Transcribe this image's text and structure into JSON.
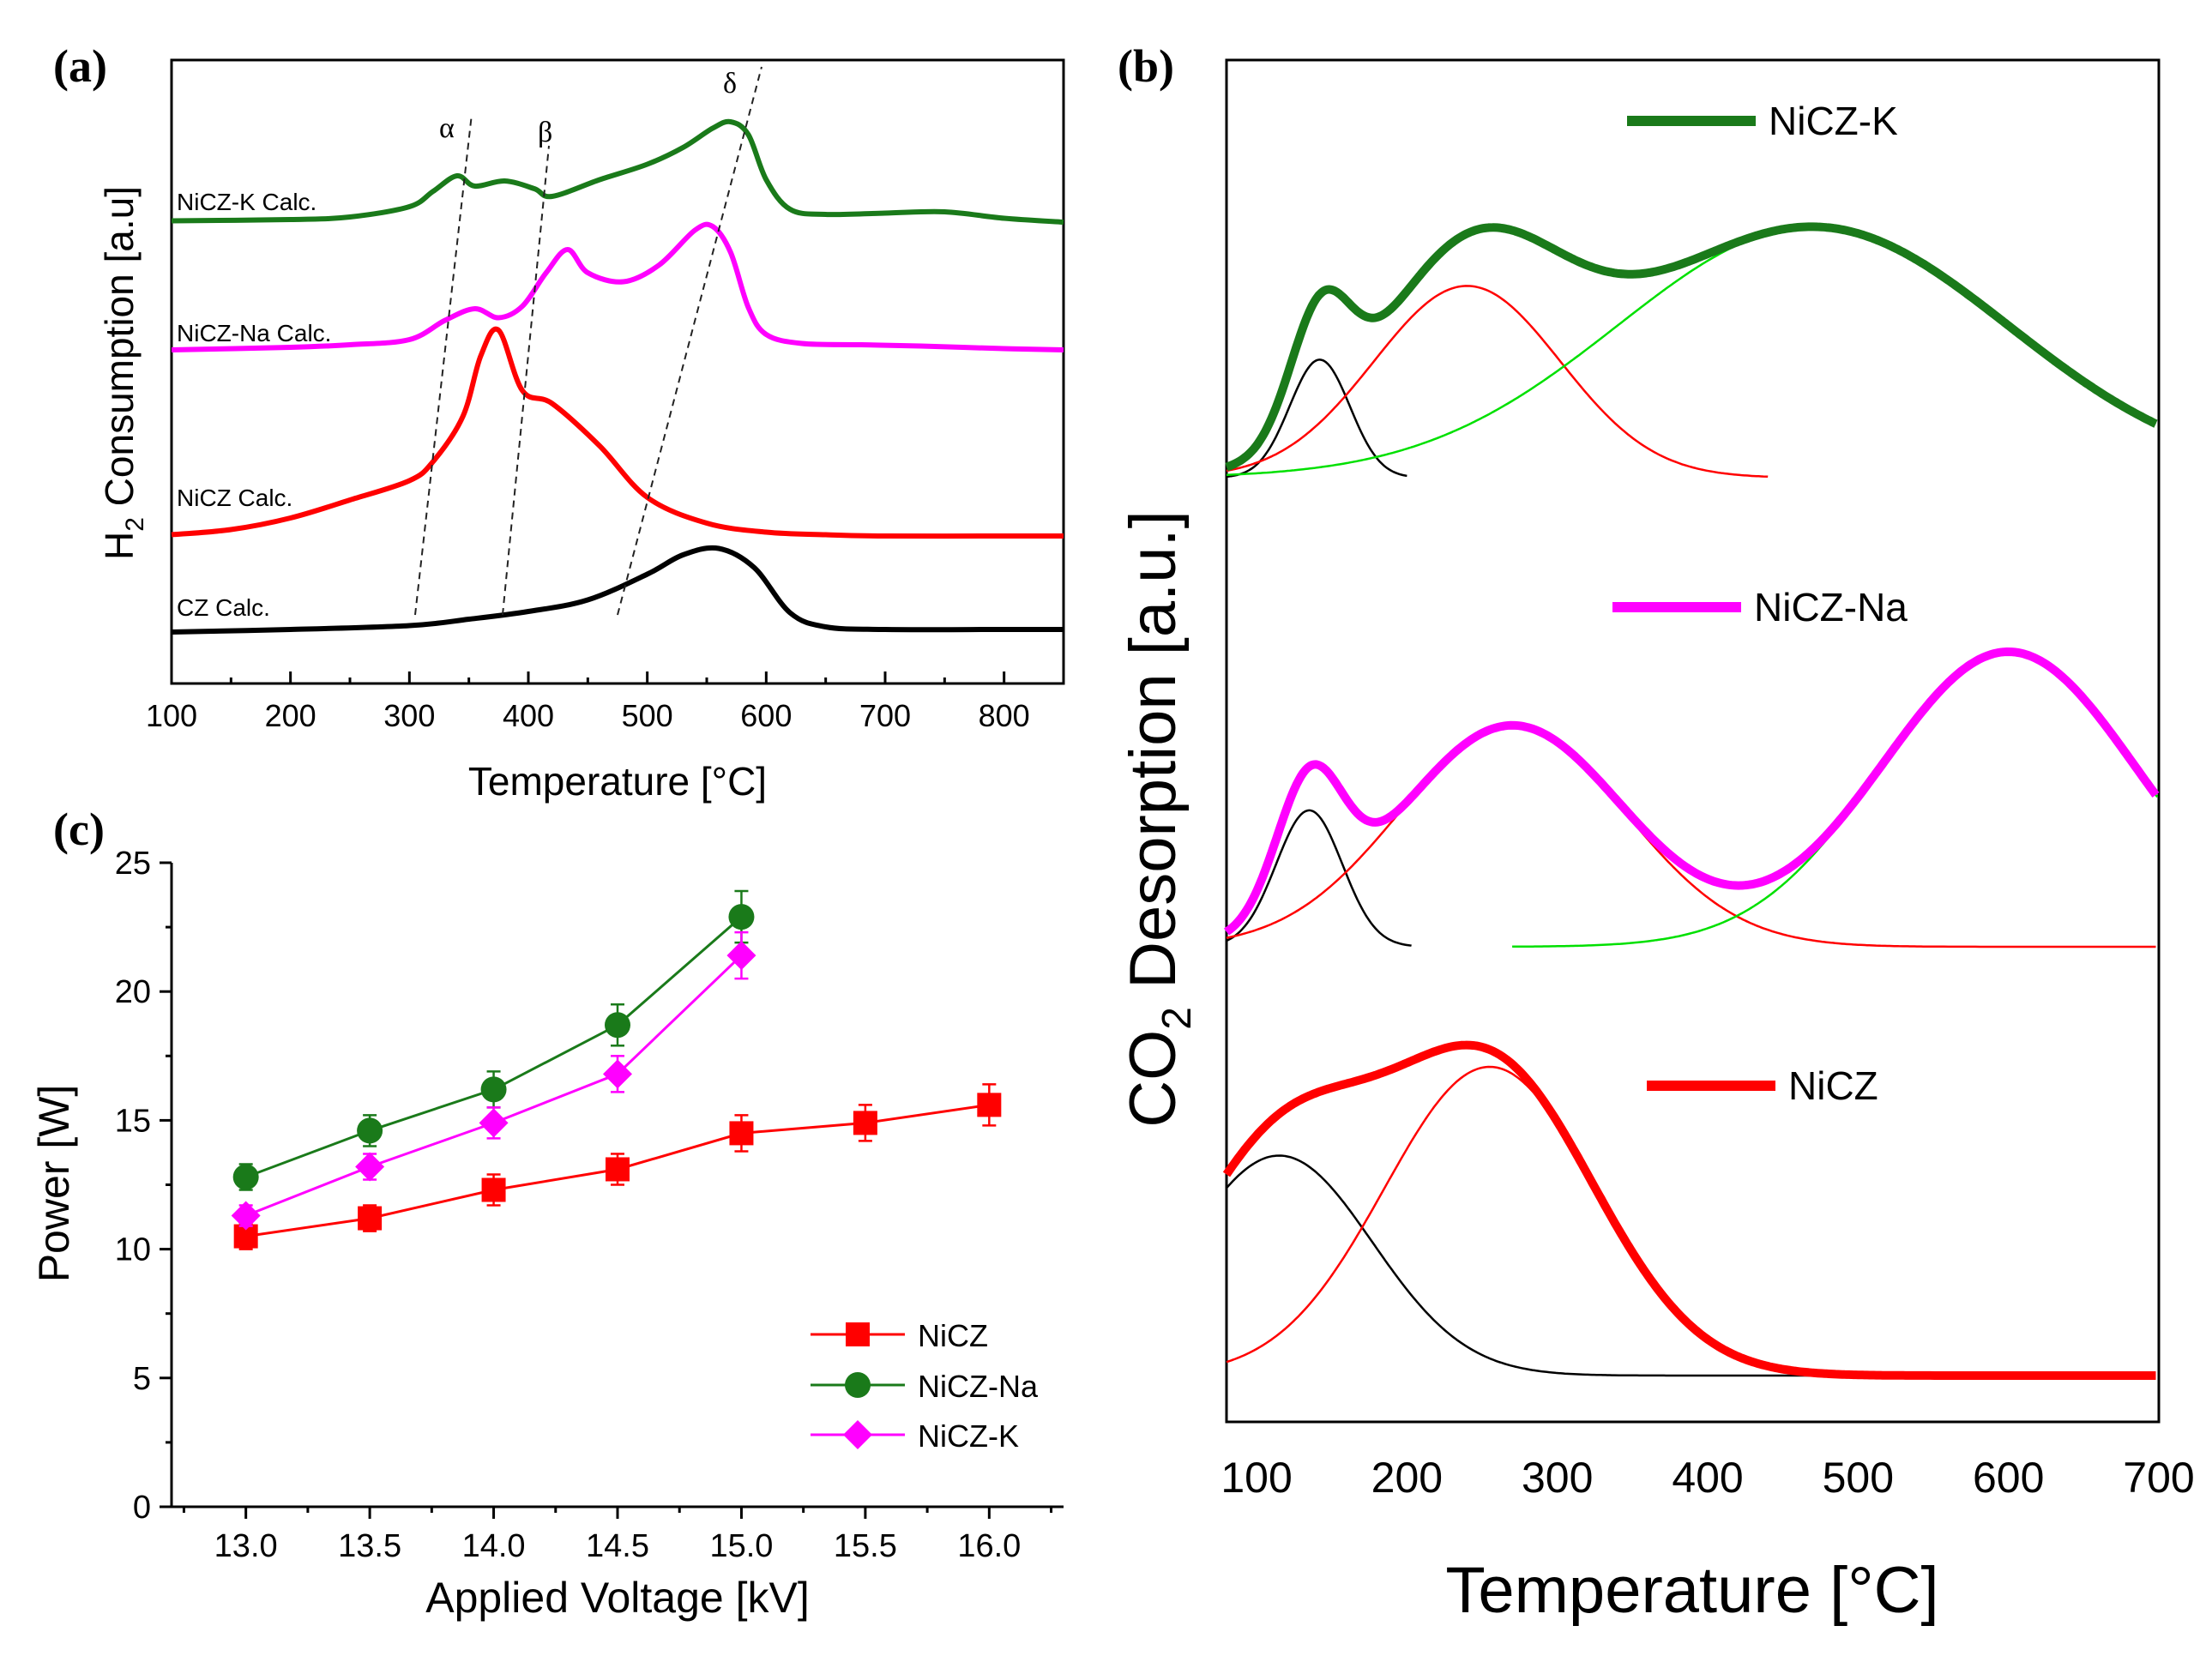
{
  "chart_data": [
    {
      "id": "a",
      "panel_label": "(a)",
      "type": "line",
      "xlabel": "Temperature [°C]",
      "ylabel_main": "H",
      "ylabel_sub": "2",
      "ylabel_rest": " Consumption [a.u]",
      "xlim": [
        100,
        850
      ],
      "xticks": [
        "100",
        "200",
        "300",
        "400",
        "500",
        "600",
        "700",
        "800"
      ],
      "annotations": [
        "α",
        "β",
        "δ"
      ],
      "series": [
        {
          "name": "NiCZ-K Calc.",
          "color": "#1a7a1a",
          "x": [
            100,
            200,
            250,
            300,
            320,
            340,
            355,
            380,
            405,
            420,
            460,
            500,
            530,
            555,
            570,
            585,
            600,
            620,
            650,
            700,
            750,
            800,
            850
          ],
          "y": [
            0.03,
            0.04,
            0.06,
            0.14,
            0.26,
            0.38,
            0.3,
            0.34,
            0.28,
            0.22,
            0.35,
            0.47,
            0.6,
            0.75,
            0.8,
            0.7,
            0.35,
            0.12,
            0.08,
            0.09,
            0.1,
            0.05,
            0.02
          ]
        },
        {
          "name": "NiCZ-Na Calc.",
          "color": "#ff00ff",
          "x": [
            100,
            200,
            250,
            300,
            330,
            355,
            375,
            395,
            415,
            433,
            450,
            480,
            510,
            540,
            555,
            570,
            585,
            600,
            630,
            680,
            730,
            800,
            850
          ],
          "y": [
            0.02,
            0.04,
            0.06,
            0.1,
            0.25,
            0.34,
            0.27,
            0.36,
            0.62,
            0.8,
            0.62,
            0.55,
            0.68,
            0.95,
            0.98,
            0.78,
            0.35,
            0.14,
            0.07,
            0.06,
            0.05,
            0.03,
            0.02
          ]
        },
        {
          "name": "NiCZ Calc.",
          "color": "#ff0000",
          "x": [
            100,
            150,
            200,
            250,
            300,
            320,
            345,
            360,
            375,
            395,
            420,
            460,
            500,
            550,
            600,
            650,
            700,
            800,
            850
          ],
          "y": [
            0.03,
            0.07,
            0.16,
            0.3,
            0.45,
            0.6,
            0.95,
            1.42,
            1.62,
            1.15,
            1.05,
            0.72,
            0.32,
            0.12,
            0.05,
            0.03,
            0.02,
            0.02,
            0.02
          ]
        },
        {
          "name": "CZ Calc.",
          "color": "#000000",
          "x": [
            100,
            200,
            300,
            350,
            400,
            450,
            500,
            530,
            560,
            590,
            620,
            650,
            700,
            800,
            850
          ],
          "y": [
            0.0,
            0.02,
            0.05,
            0.1,
            0.16,
            0.25,
            0.45,
            0.6,
            0.65,
            0.5,
            0.15,
            0.04,
            0.02,
            0.02,
            0.02
          ]
        }
      ]
    },
    {
      "id": "b",
      "panel_label": "(b)",
      "type": "line",
      "xlabel": "Temperature [°C]",
      "ylabel_main": "CO",
      "ylabel_sub": "2",
      "ylabel_rest": " Desorption [a.u.]",
      "xlim": [
        80,
        700
      ],
      "xticks": [
        "100",
        "200",
        "300",
        "400",
        "500",
        "600",
        "700"
      ],
      "legend": [
        "NiCZ-K",
        "NiCZ-Na",
        "NiCZ"
      ],
      "colors": {
        "NiCZ-K": "#1a7a1a",
        "NiCZ-Na": "#ff00ff",
        "NiCZ": "#ff0000",
        "fit_black": "#000000",
        "fit_red": "#ff0000",
        "fit_green": "#00e000"
      },
      "groups": [
        {
          "name": "NiCZ-K",
          "peaks": [
            {
              "color": "black",
              "center": 142,
              "sigma": 20,
              "amp": 0.32,
              "range": [
                80,
                200
              ]
            },
            {
              "color": "red",
              "center": 240,
              "sigma": 62,
              "amp": 0.52,
              "range": [
                80,
                440
              ]
            },
            {
              "color": "green",
              "center": 470,
              "sigma": 130,
              "amp": 0.68,
              "range": [
                80,
                700
              ]
            }
          ]
        },
        {
          "name": "NiCZ-Na",
          "peaks": [
            {
              "color": "black",
              "center": 135,
              "sigma": 22,
              "amp": 0.37,
              "range": [
                80,
                205
              ]
            },
            {
              "color": "red",
              "center": 270,
              "sigma": 75,
              "amp": 0.6,
              "range": [
                80,
                700
              ]
            },
            {
              "color": "green",
              "center": 600,
              "sigma": 85,
              "amp": 0.8,
              "range": [
                270,
                700
              ]
            }
          ]
        },
        {
          "name": "NiCZ",
          "peaks": [
            {
              "color": "black",
              "center": 115,
              "sigma": 62,
              "amp": 0.57,
              "range": [
                80,
                700
              ]
            },
            {
              "color": "red",
              "center": 255,
              "sigma": 70,
              "amp": 0.8,
              "range": [
                80,
                480
              ]
            }
          ]
        }
      ]
    },
    {
      "id": "c",
      "panel_label": "(c)",
      "type": "scatter",
      "xlabel": "Applied Voltage [kV]",
      "ylabel": "Power [W]",
      "xlim": [
        12.7,
        16.3
      ],
      "ylim": [
        0,
        25
      ],
      "xticks": [
        "13.0",
        "13.5",
        "14.0",
        "14.5",
        "15.0",
        "15.5",
        "16.0"
      ],
      "yticks": [
        "0",
        "5",
        "10",
        "15",
        "20",
        "25"
      ],
      "series": [
        {
          "name": "NiCZ",
          "color": "#ff0000",
          "marker": "square",
          "x": [
            13.0,
            13.5,
            14.0,
            14.5,
            15.0,
            15.5,
            16.0
          ],
          "y": [
            10.5,
            11.2,
            12.3,
            13.1,
            14.5,
            14.9,
            15.6
          ],
          "err": [
            0.5,
            0.5,
            0.6,
            0.6,
            0.7,
            0.7,
            0.8
          ]
        },
        {
          "name": "NiCZ-Na",
          "color": "#1a7a1a",
          "marker": "circle",
          "x": [
            13.0,
            13.5,
            14.0,
            14.5,
            15.0
          ],
          "y": [
            12.8,
            14.6,
            16.2,
            18.7,
            22.9
          ],
          "err": [
            0.5,
            0.6,
            0.7,
            0.8,
            1.0
          ]
        },
        {
          "name": "NiCZ-K",
          "color": "#ff00ff",
          "marker": "diamond",
          "x": [
            13.0,
            13.5,
            14.0,
            14.5,
            15.0
          ],
          "y": [
            11.3,
            13.2,
            14.9,
            16.8,
            21.4
          ],
          "err": [
            0.4,
            0.5,
            0.6,
            0.7,
            0.9
          ]
        }
      ]
    }
  ]
}
